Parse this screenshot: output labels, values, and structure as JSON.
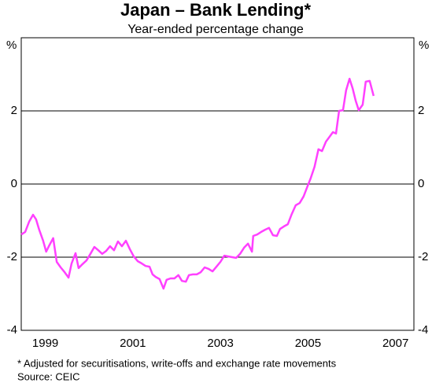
{
  "chart_data": {
    "type": "line",
    "title": "Japan – Bank Lending*",
    "subtitle": "Year-ended percentage change",
    "ylabel": "%",
    "y2label": "%",
    "footnote": "*   Adjusted for securitisations, write-offs and exchange rate movements",
    "source": "Source: CEIC",
    "x": [
      1998.95,
      1999.04,
      1999.13,
      1999.22,
      1999.29,
      1999.36,
      1999.45,
      1999.52,
      1999.59,
      1999.68,
      1999.76,
      1999.85,
      1999.94,
      2000.03,
      2000.1,
      2000.19,
      2000.26,
      2000.35,
      2000.44,
      2000.53,
      2000.62,
      2000.71,
      2000.8,
      2000.89,
      2000.98,
      2001.07,
      2001.16,
      2001.25,
      2001.34,
      2001.43,
      2001.52,
      2001.61,
      2001.7,
      2001.79,
      2001.88,
      2001.95,
      2002.02,
      2002.11,
      2002.2,
      2002.27,
      2002.36,
      2002.45,
      2002.54,
      2002.62,
      2002.71,
      2002.78,
      2002.87,
      2002.96,
      2003.05,
      2003.14,
      2003.23,
      2003.32,
      2003.41,
      2003.5,
      2003.59,
      2003.68,
      2003.77,
      2003.86,
      2003.95,
      2004.04,
      2004.13,
      2004.22,
      2004.25,
      2004.34,
      2004.43,
      2004.52,
      2004.61,
      2004.7,
      2004.79,
      2004.86,
      2004.95,
      2005.04,
      2005.13,
      2005.22,
      2005.31,
      2005.4,
      2005.49,
      2005.56,
      2005.65,
      2005.74,
      2005.82,
      2005.91,
      2005.98,
      2006.07,
      2006.14,
      2006.21,
      2006.3,
      2006.37,
      2006.45,
      2006.52,
      2006.59,
      2006.66,
      2006.75,
      2006.82,
      2006.91,
      2007.0
    ],
    "series": [
      {
        "name": "Bank lending",
        "color": "#ff40ff",
        "values": [
          -1.38,
          -1.31,
          -1.03,
          -0.84,
          -0.97,
          -1.25,
          -1.55,
          -1.85,
          -1.68,
          -1.48,
          -2.13,
          -2.28,
          -2.41,
          -2.56,
          -2.17,
          -1.89,
          -2.3,
          -2.19,
          -2.09,
          -1.91,
          -1.72,
          -1.81,
          -1.91,
          -1.83,
          -1.7,
          -1.81,
          -1.57,
          -1.7,
          -1.55,
          -1.78,
          -1.98,
          -2.11,
          -2.17,
          -2.24,
          -2.26,
          -2.47,
          -2.54,
          -2.6,
          -2.86,
          -2.62,
          -2.58,
          -2.58,
          -2.49,
          -2.65,
          -2.67,
          -2.49,
          -2.47,
          -2.47,
          -2.41,
          -2.28,
          -2.32,
          -2.39,
          -2.26,
          -2.13,
          -1.96,
          -1.98,
          -2.0,
          -2.02,
          -1.91,
          -1.74,
          -1.63,
          -1.85,
          -1.42,
          -1.38,
          -1.31,
          -1.25,
          -1.2,
          -1.4,
          -1.42,
          -1.23,
          -1.16,
          -1.1,
          -0.82,
          -0.58,
          -0.52,
          -0.34,
          -0.06,
          0.15,
          0.47,
          0.95,
          0.9,
          1.16,
          1.27,
          1.42,
          1.38,
          2.0,
          2.02,
          2.56,
          2.88,
          2.62,
          2.28,
          2.02,
          2.17,
          2.8,
          2.82,
          2.41
        ]
      }
    ],
    "xlim": [
      1998.95,
      2007.92
    ],
    "xticks": [
      {
        "value": 1999.5,
        "label": "1999"
      },
      {
        "value": 2001.5,
        "label": "2001"
      },
      {
        "value": 2003.5,
        "label": "2003"
      },
      {
        "value": 2005.5,
        "label": "2005"
      },
      {
        "value": 2007.5,
        "label": "2007"
      }
    ],
    "ylim": [
      -4,
      4
    ],
    "yticks": [
      -4,
      -2,
      0,
      2
    ],
    "grid": true
  }
}
